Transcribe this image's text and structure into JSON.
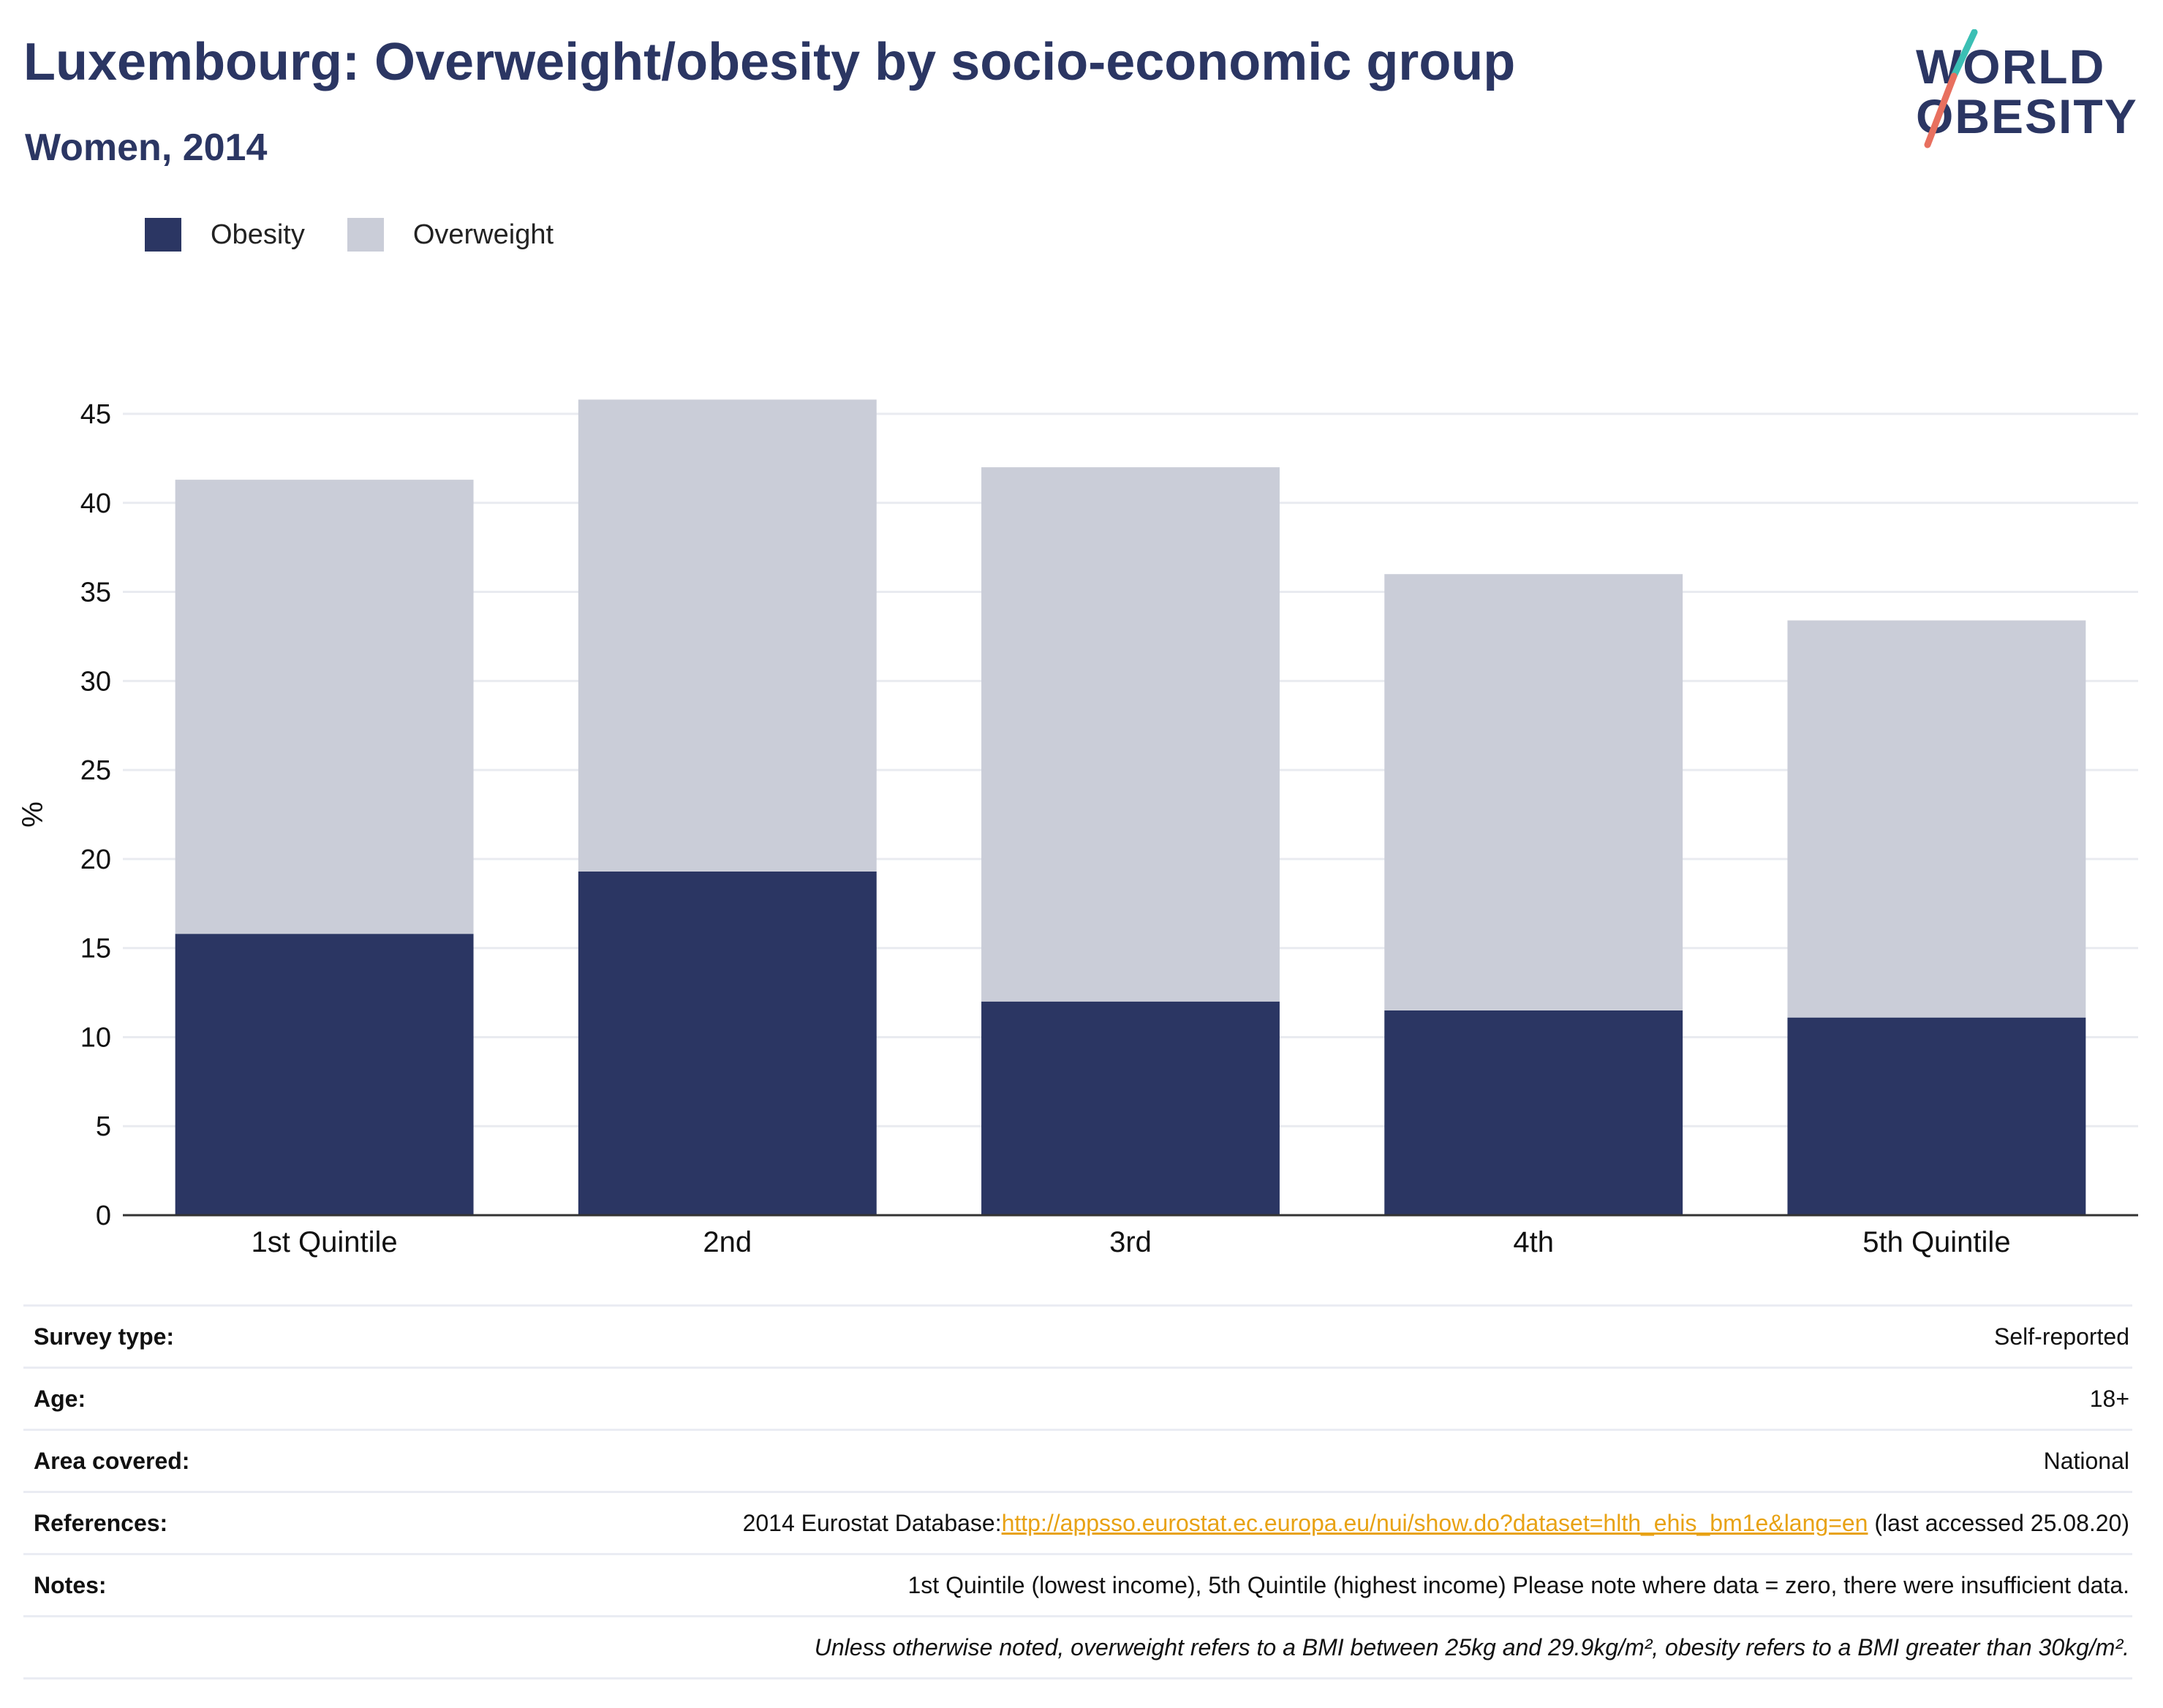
{
  "header": {
    "title": "Luxembourg: Overweight/obesity by socio-economic group",
    "subtitle": "Women, 2014"
  },
  "logo": {
    "line1": "WORLD",
    "line2": "OBESITY"
  },
  "colors": {
    "obesity": "#2b3663",
    "overweight": "#cacdd8",
    "title": "#2b3663",
    "link": "#e8a214",
    "logo_teal": "#3bbfb4",
    "logo_coral": "#e8705f"
  },
  "legend": {
    "obesity": "Obesity",
    "overweight": "Overweight"
  },
  "chart_data": {
    "type": "bar",
    "stacked": true,
    "categories": [
      "1st Quintile",
      "2nd",
      "3rd",
      "4th",
      "5th Quintile"
    ],
    "series": [
      {
        "name": "Obesity",
        "values": [
          15.8,
          19.3,
          12.0,
          11.5,
          11.1
        ]
      },
      {
        "name": "Overweight",
        "values": [
          25.5,
          26.5,
          30.0,
          24.5,
          22.3
        ]
      }
    ],
    "ylabel": "%",
    "xlabel": "",
    "ylim": [
      0,
      45
    ],
    "yticks": [
      0,
      5,
      10,
      15,
      20,
      25,
      30,
      35,
      40,
      45
    ],
    "grid": true,
    "legend_position": "top-left"
  },
  "info": {
    "survey_label": "Survey type:",
    "survey_value": "Self-reported",
    "age_label": "Age:",
    "age_value": "18+",
    "area_label": "Area covered:",
    "area_value": "National",
    "references_label": "References:",
    "references_prefix": "2014 Eurostat Database:",
    "references_link": "http://appsso.eurostat.ec.europa.eu/nui/show.do?dataset=hlth_ehis_bm1e&lang=en",
    "references_suffix": " (last accessed 25.08.20)",
    "notes_label": "Notes:",
    "notes_value": "1st Quintile (lowest income), 5th Quintile (highest income) Please note where data = zero, there were insufficient data.",
    "footnote": "Unless otherwise noted, overweight refers to a BMI between 25kg and 29.9kg/m², obesity refers to a BMI greater than 30kg/m²."
  }
}
